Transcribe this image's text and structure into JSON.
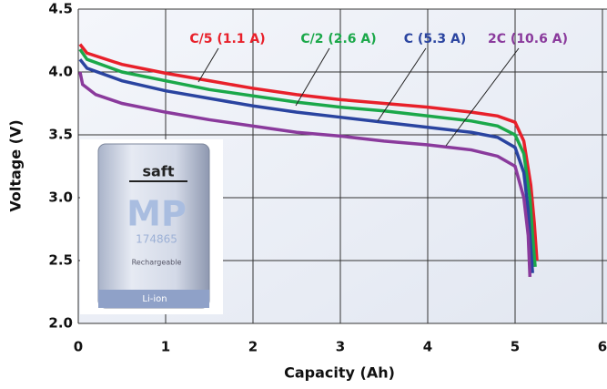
{
  "chart_data": {
    "type": "line",
    "x_label": "Capacity (Ah)",
    "y_label": "Voltage (V)",
    "xlim": [
      0,
      6
    ],
    "ylim": [
      2.0,
      4.5
    ],
    "xticks": [
      0,
      1,
      2,
      3,
      4,
      5,
      6
    ],
    "yticks": [
      {
        "value": 2.0,
        "label": "2.0"
      },
      2.5,
      {
        "value": 3.0,
        "label": "3.0"
      },
      3.5,
      {
        "value": 4.0,
        "label": "4.0"
      },
      4.5
    ],
    "grid": true,
    "series": [
      {
        "name": "C/5 (1.1 A)",
        "color": "#e8202a",
        "x": [
          0.02,
          0.1,
          0.5,
          1,
          1.5,
          2,
          2.5,
          3,
          3.5,
          4,
          4.5,
          4.8,
          5.0,
          5.1,
          5.18,
          5.22,
          5.25
        ],
        "values": [
          4.22,
          4.15,
          4.06,
          3.99,
          3.93,
          3.87,
          3.82,
          3.78,
          3.75,
          3.72,
          3.68,
          3.65,
          3.6,
          3.45,
          3.1,
          2.8,
          2.5
        ]
      },
      {
        "name": "C/2 (2.6 A)",
        "color": "#1ba84a",
        "x": [
          0.02,
          0.1,
          0.5,
          1,
          1.5,
          2,
          2.5,
          3,
          3.5,
          4,
          4.5,
          4.8,
          5.0,
          5.1,
          5.17,
          5.2,
          5.23
        ],
        "values": [
          4.18,
          4.1,
          4.0,
          3.93,
          3.86,
          3.81,
          3.76,
          3.72,
          3.69,
          3.65,
          3.61,
          3.57,
          3.5,
          3.35,
          3.0,
          2.7,
          2.45
        ]
      },
      {
        "name": "C (5.3 A)",
        "color": "#2a44a0",
        "x": [
          0.02,
          0.1,
          0.5,
          1,
          1.5,
          2,
          2.5,
          3,
          3.5,
          4,
          4.5,
          4.8,
          5.0,
          5.1,
          5.15,
          5.18,
          5.2
        ],
        "values": [
          4.1,
          4.03,
          3.93,
          3.85,
          3.79,
          3.73,
          3.68,
          3.64,
          3.6,
          3.56,
          3.52,
          3.48,
          3.4,
          3.2,
          2.9,
          2.6,
          2.4
        ]
      },
      {
        "name": "2C (10.6 A)",
        "color": "#8a3a9c",
        "x": [
          0.02,
          0.05,
          0.2,
          0.5,
          1,
          1.5,
          2,
          2.5,
          3,
          3.5,
          4,
          4.5,
          4.8,
          5.0,
          5.1,
          5.15,
          5.17
        ],
        "values": [
          4.0,
          3.9,
          3.82,
          3.75,
          3.68,
          3.62,
          3.57,
          3.52,
          3.49,
          3.45,
          3.42,
          3.38,
          3.33,
          3.25,
          3.0,
          2.7,
          2.37
        ]
      }
    ],
    "inset_texts": {
      "brand": "saft",
      "model": "MP",
      "number": "174865",
      "note": "Rechargeable",
      "chemistry": "Li-ion"
    }
  }
}
